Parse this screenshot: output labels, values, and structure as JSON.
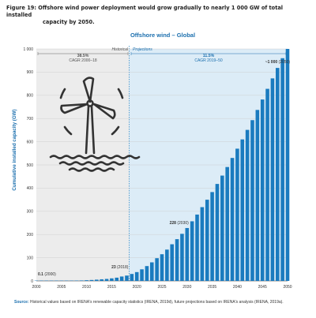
{
  "figure": {
    "title_line1": "Figure 19: Offshore wind power deployment would grow gradually to nearly 1 000 GW of total installed",
    "title_line2": "capacity by 2050.",
    "source_label": "Source:",
    "source_text": "Historical values based on IRENA's renewable capacity statistics (IRENA, 2019d), future projections based on IRENA's analysis (IRENA, 2019a)."
  },
  "colors": {
    "bar": "#1a7bbf",
    "projection_bg": "#dcecf7",
    "historical_bg": "#ececec",
    "title": "#1b6fae",
    "cagr_hist": "#555555",
    "cagr_proj": "#1b6fae"
  },
  "chart_data": {
    "type": "bar",
    "title": "Offshore wind – Global",
    "ylabel": "Cumulative installed capacity (GW)",
    "xlabel": "",
    "ylim": [
      0,
      1000
    ],
    "xlim": [
      2000,
      2050
    ],
    "yticks": [
      "0",
      "100",
      "200",
      "300",
      "400",
      "500",
      "600",
      "700",
      "800",
      "900",
      "1 000"
    ],
    "xticks": [
      "2000",
      "2005",
      "2010",
      "2015",
      "2020",
      "2025",
      "2030",
      "2035",
      "2040",
      "2045",
      "2050"
    ],
    "regions": {
      "historical": {
        "label": "Historical",
        "range": [
          2000,
          2018
        ]
      },
      "projections": {
        "label": "Projections",
        "range": [
          2019,
          2050
        ]
      }
    },
    "cagr": [
      {
        "value": "38.5%",
        "label": "CAGR 2000–18"
      },
      {
        "value": "11.5%",
        "label": "CAGR 2019–50"
      }
    ],
    "annotations": [
      {
        "value": "0.1",
        "label": "(2000)"
      },
      {
        "value": "23",
        "label": "(2018)"
      },
      {
        "value": "228",
        "label": "(2030)"
      },
      {
        "value": "~1 000",
        "label": "(2050)"
      }
    ],
    "x": [
      2000,
      2001,
      2002,
      2003,
      2004,
      2005,
      2006,
      2007,
      2008,
      2009,
      2010,
      2011,
      2012,
      2013,
      2014,
      2015,
      2016,
      2017,
      2018,
      2019,
      2020,
      2021,
      2022,
      2023,
      2024,
      2025,
      2026,
      2027,
      2028,
      2029,
      2030,
      2031,
      2032,
      2033,
      2034,
      2035,
      2036,
      2037,
      2038,
      2039,
      2040,
      2041,
      2042,
      2043,
      2044,
      2045,
      2046,
      2047,
      2048,
      2049,
      2050
    ],
    "values": [
      0.1,
      0.3,
      0.3,
      0.5,
      0.6,
      0.7,
      0.8,
      1.1,
      1.5,
      2,
      3,
      4,
      5.4,
      7,
      8.5,
      11,
      14,
      19,
      23,
      30,
      38,
      50,
      64,
      80,
      98,
      115,
      135,
      158,
      180,
      203,
      228,
      257,
      286,
      318,
      350,
      383,
      418,
      454,
      491,
      530,
      570,
      610,
      651,
      693,
      737,
      782,
      828,
      873,
      918,
      960,
      1000
    ]
  }
}
